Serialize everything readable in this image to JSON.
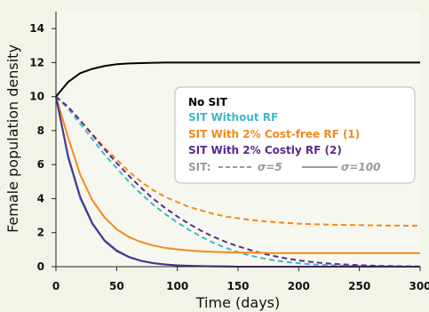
{
  "chart_data": {
    "type": "line",
    "title": "",
    "xlabel": "Time (days)",
    "ylabel": "Female population density",
    "xlim": [
      0,
      300
    ],
    "ylim": [
      0,
      15
    ],
    "xticks": [
      "0",
      "50",
      "100",
      "150",
      "200",
      "250",
      "300"
    ],
    "yticks": [
      "0",
      "2",
      "4",
      "6",
      "8",
      "10",
      "12",
      "14"
    ],
    "grid": false,
    "legend_position": "right",
    "colors": {
      "no_sit": "#000000",
      "sit_without_rf": "#3fb8c8",
      "sit_cost_free": "#f28a1c",
      "sit_costly": "#5b2a8c",
      "legend_style_gray": "#9a9a9a"
    },
    "x": [
      0,
      10,
      20,
      30,
      40,
      50,
      60,
      70,
      80,
      90,
      100,
      110,
      120,
      130,
      140,
      150,
      160,
      170,
      180,
      190,
      200,
      210,
      220,
      230,
      240,
      250,
      260,
      270,
      280,
      290,
      300
    ],
    "series": [
      {
        "name": "No SIT",
        "color_key": "no_sit",
        "style": "solid",
        "values": [
          10.0,
          10.86,
          11.38,
          11.63,
          11.8,
          11.9,
          11.95,
          11.97,
          11.99,
          12.0,
          12.0,
          12.0,
          12.0,
          12.0,
          12.0,
          12.0,
          12.0,
          12.0,
          12.0,
          12.0,
          12.0,
          12.0,
          12.0,
          12.0,
          12.0,
          12.0,
          12.0,
          12.0,
          12.0,
          12.0,
          12.0
        ]
      },
      {
        "name": "SIT Without RF",
        "color_key": "sit_without_rf",
        "style": "solid",
        "values": [
          10.0,
          6.4,
          4.0,
          2.5,
          1.5,
          0.9,
          0.55,
          0.33,
          0.2,
          0.12,
          0.07,
          0.04,
          0.03,
          0.02,
          0.01,
          0.0,
          0.0,
          0.0,
          0.0,
          0.0,
          0.0,
          0.0,
          0.0,
          0.0,
          0.0,
          0.0,
          0.0,
          0.0,
          0.0,
          0.0,
          0.0
        ]
      },
      {
        "name": "SIT With 2% Cost-free RF (1)",
        "color_key": "sit_cost_free",
        "style": "solid",
        "values": [
          10.0,
          7.6,
          5.4,
          3.9,
          2.9,
          2.2,
          1.75,
          1.45,
          1.25,
          1.1,
          1.02,
          0.95,
          0.9,
          0.87,
          0.85,
          0.83,
          0.82,
          0.81,
          0.8,
          0.8,
          0.8,
          0.8,
          0.8,
          0.8,
          0.8,
          0.8,
          0.8,
          0.8,
          0.8,
          0.8,
          0.8
        ]
      },
      {
        "name": "SIT With 2% Costly RF (2)",
        "color_key": "sit_costly",
        "style": "solid",
        "values": [
          10.0,
          6.5,
          4.1,
          2.55,
          1.55,
          0.95,
          0.58,
          0.35,
          0.21,
          0.13,
          0.08,
          0.05,
          0.03,
          0.02,
          0.01,
          0.0,
          0.0,
          0.0,
          0.0,
          0.0,
          0.0,
          0.0,
          0.0,
          0.0,
          0.0,
          0.0,
          0.0,
          0.0,
          0.0,
          0.0,
          0.0
        ]
      },
      {
        "name": "SIT Without RF (σ=5)",
        "color_key": "sit_without_rf",
        "style": "dashed",
        "values": [
          10.0,
          9.3,
          8.4,
          7.5,
          6.6,
          5.8,
          5.0,
          4.3,
          3.65,
          3.1,
          2.6,
          2.15,
          1.75,
          1.4,
          1.1,
          0.85,
          0.65,
          0.5,
          0.37,
          0.27,
          0.2,
          0.14,
          0.1,
          0.07,
          0.05,
          0.03,
          0.02,
          0.01,
          0.01,
          0.0,
          0.0
        ]
      },
      {
        "name": "SIT With 2% Cost-free RF (1) (σ=5)",
        "color_key": "sit_cost_free",
        "style": "dashed",
        "values": [
          10.0,
          9.4,
          8.6,
          7.8,
          7.0,
          6.3,
          5.6,
          5.0,
          4.5,
          4.1,
          3.8,
          3.5,
          3.3,
          3.1,
          2.95,
          2.85,
          2.75,
          2.68,
          2.62,
          2.57,
          2.53,
          2.5,
          2.48,
          2.46,
          2.45,
          2.44,
          2.43,
          2.42,
          2.42,
          2.41,
          2.41
        ]
      },
      {
        "name": "SIT With 2% Costly RF (2) (σ=5)",
        "color_key": "sit_costly",
        "style": "dashed",
        "values": [
          10.0,
          9.4,
          8.6,
          7.75,
          6.9,
          6.1,
          5.35,
          4.65,
          4.0,
          3.45,
          2.95,
          2.5,
          2.1,
          1.75,
          1.45,
          1.2,
          0.98,
          0.78,
          0.62,
          0.48,
          0.37,
          0.28,
          0.21,
          0.16,
          0.12,
          0.09,
          0.06,
          0.04,
          0.03,
          0.02,
          0.01
        ]
      }
    ],
    "legend": {
      "entries": [
        {
          "label": "No SIT",
          "color_key": "no_sit"
        },
        {
          "label": "SIT Without RF",
          "color_key": "sit_without_rf"
        },
        {
          "label": "SIT With 2% Cost-free RF (1)",
          "color_key": "sit_cost_free"
        },
        {
          "label": "SIT With 2% Costly RF (2)",
          "color_key": "sit_costly"
        }
      ],
      "style_row": {
        "prefix": "SIT:",
        "dashed_label": "σ=5",
        "solid_label": "σ=100"
      }
    }
  }
}
